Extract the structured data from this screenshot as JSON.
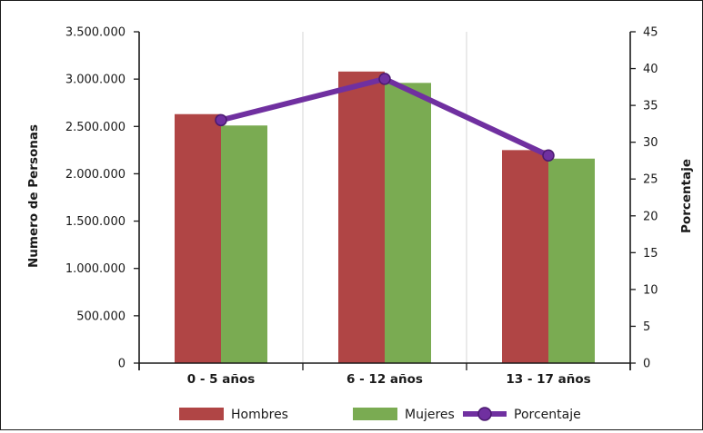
{
  "chart_data": {
    "type": "bar",
    "categories": [
      "0 - 5 años",
      "6 - 12 años",
      "13 - 17 años"
    ],
    "series": [
      {
        "name": "Hombres",
        "kind": "bar",
        "axis": "left",
        "color": "#b04545",
        "values": [
          2630000,
          3080000,
          2250000
        ]
      },
      {
        "name": "Mujeres",
        "kind": "bar",
        "axis": "left",
        "color": "#7aab52",
        "values": [
          2510000,
          2960000,
          2160000
        ]
      },
      {
        "name": "Porcentaje",
        "kind": "line",
        "axis": "right",
        "color": "#7030a0",
        "values": [
          33,
          38.6,
          28.2
        ]
      }
    ],
    "ylabel": "Numero de Personas",
    "ylabel_right": "Porcentaje",
    "ylim": [
      0,
      3500000
    ],
    "ylim_right": [
      0,
      45
    ],
    "yticks": [
      0,
      500000,
      1000000,
      1500000,
      2000000,
      2500000,
      3000000,
      3500000
    ],
    "ytick_labels": [
      "0",
      "500.000",
      "1.000.000",
      "1.500.000",
      "2.000.000",
      "2.500.000",
      "3.000.000",
      "3.500.000"
    ],
    "yticks_right": [
      0,
      5,
      10,
      15,
      20,
      25,
      30,
      35,
      40,
      45
    ],
    "ytick_labels_right": [
      "0",
      "5",
      "10",
      "15",
      "20",
      "25",
      "30",
      "35",
      "40",
      "45"
    ],
    "grid": "vertical",
    "legend_position": "bottom"
  }
}
